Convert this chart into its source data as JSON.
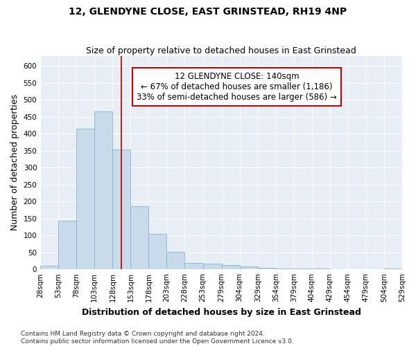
{
  "title": "12, GLENDYNE CLOSE, EAST GRINSTEAD, RH19 4NP",
  "subtitle": "Size of property relative to detached houses in East Grinstead",
  "xlabel": "Distribution of detached houses by size in East Grinstead",
  "ylabel": "Number of detached properties",
  "bin_edges": [
    28,
    53,
    78,
    103,
    128,
    153,
    178,
    203,
    228,
    253,
    279,
    304,
    329,
    354,
    379,
    404,
    429,
    454,
    479,
    504,
    529
  ],
  "bar_heights": [
    10,
    143,
    415,
    465,
    353,
    186,
    104,
    52,
    18,
    17,
    13,
    8,
    5,
    3,
    3,
    3,
    0,
    0,
    0,
    3
  ],
  "bar_color": "#c9daea",
  "bar_edge_color": "#8ab4cc",
  "property_line_x": 140,
  "property_line_color": "#cc0000",
  "annotation_line1": "12 GLENDYNE CLOSE: 140sqm",
  "annotation_line2": "← 67% of detached houses are smaller (1,186)",
  "annotation_line3": "33% of semi-detached houses are larger (586) →",
  "annotation_box_color": "#ffffff",
  "annotation_box_edge_color": "#cc0000",
  "ylim": [
    0,
    630
  ],
  "yticks": [
    0,
    50,
    100,
    150,
    200,
    250,
    300,
    350,
    400,
    450,
    500,
    550,
    600
  ],
  "footer_line1": "Contains HM Land Registry data © Crown copyright and database right 2024.",
  "footer_line2": "Contains public sector information licensed under the Open Government Licence v3.0.",
  "fig_background_color": "#ffffff",
  "plot_background_color": "#e8eef5",
  "grid_color": "#ffffff",
  "title_fontsize": 10,
  "subtitle_fontsize": 9,
  "axis_label_fontsize": 9,
  "tick_fontsize": 7.5,
  "annotation_fontsize": 8.5,
  "footer_fontsize": 6.5
}
